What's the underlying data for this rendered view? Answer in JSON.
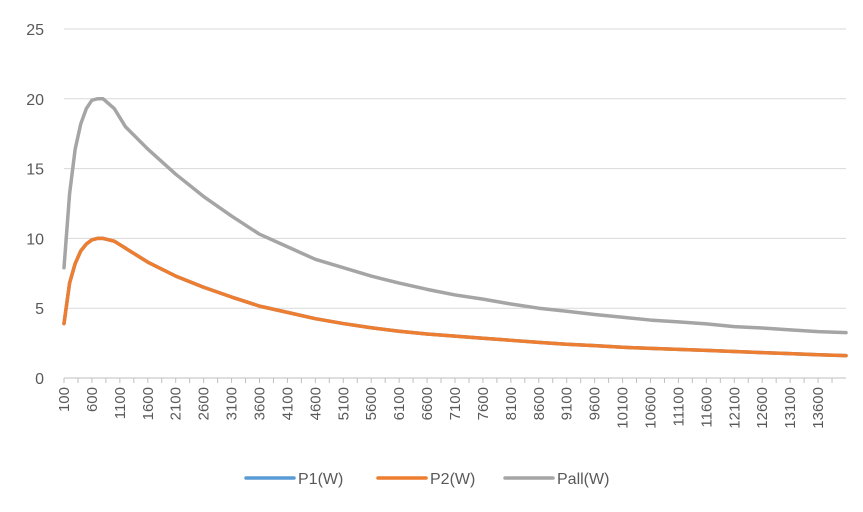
{
  "chart_data": {
    "type": "line",
    "title": "",
    "xlabel": "",
    "ylabel": "",
    "ylim": [
      0,
      25
    ],
    "yticks": [
      0,
      5,
      10,
      15,
      20,
      25
    ],
    "xlim": [
      100,
      14100
    ],
    "xtick_labels": [
      "100",
      "600",
      "1100",
      "1600",
      "2100",
      "2600",
      "3100",
      "3600",
      "4100",
      "4600",
      "5100",
      "5600",
      "6100",
      "6600",
      "7100",
      "7600",
      "8100",
      "8600",
      "9100",
      "9600",
      "10100",
      "10600",
      "11100",
      "11600",
      "12100",
      "12600",
      "13100",
      "13600"
    ],
    "grid": "horizontal",
    "legend_position": "bottom",
    "x": [
      100,
      200,
      300,
      400,
      500,
      600,
      700,
      800,
      1000,
      1200,
      1600,
      2100,
      2600,
      3100,
      3600,
      4100,
      4600,
      5100,
      5600,
      6100,
      6600,
      7100,
      7600,
      8100,
      8600,
      9100,
      9600,
      10100,
      10600,
      11100,
      11600,
      12100,
      12600,
      13100,
      13600,
      14100
    ],
    "series": [
      {
        "name": "P1(W)",
        "color": "#5b9bd5",
        "values": [
          3.9,
          6.8,
          8.2,
          9.1,
          9.6,
          9.9,
          10.0,
          10.0,
          9.8,
          9.3,
          8.3,
          7.3,
          6.5,
          5.8,
          5.15,
          4.7,
          4.25,
          3.9,
          3.6,
          3.35,
          3.15,
          3.0,
          2.85,
          2.7,
          2.55,
          2.42,
          2.32,
          2.2,
          2.12,
          2.05,
          1.98,
          1.9,
          1.82,
          1.75,
          1.67,
          1.6
        ]
      },
      {
        "name": "P2(W)",
        "color": "#ed7d31",
        "values": [
          3.9,
          6.8,
          8.2,
          9.1,
          9.6,
          9.9,
          10.0,
          10.0,
          9.8,
          9.3,
          8.3,
          7.3,
          6.5,
          5.8,
          5.15,
          4.7,
          4.25,
          3.9,
          3.6,
          3.35,
          3.15,
          3.0,
          2.85,
          2.7,
          2.55,
          2.42,
          2.32,
          2.2,
          2.12,
          2.05,
          1.98,
          1.9,
          1.82,
          1.75,
          1.67,
          1.6
        ]
      },
      {
        "name": "Pall(W)",
        "color": "#a5a5a5",
        "values": [
          7.9,
          13.2,
          16.4,
          18.2,
          19.3,
          19.9,
          20.0,
          20.0,
          19.3,
          18.0,
          16.4,
          14.6,
          13.0,
          11.6,
          10.3,
          9.4,
          8.5,
          7.9,
          7.3,
          6.8,
          6.35,
          5.95,
          5.65,
          5.3,
          5.0,
          4.78,
          4.55,
          4.35,
          4.15,
          4.02,
          3.88,
          3.68,
          3.58,
          3.45,
          3.32,
          3.25
        ]
      }
    ]
  }
}
